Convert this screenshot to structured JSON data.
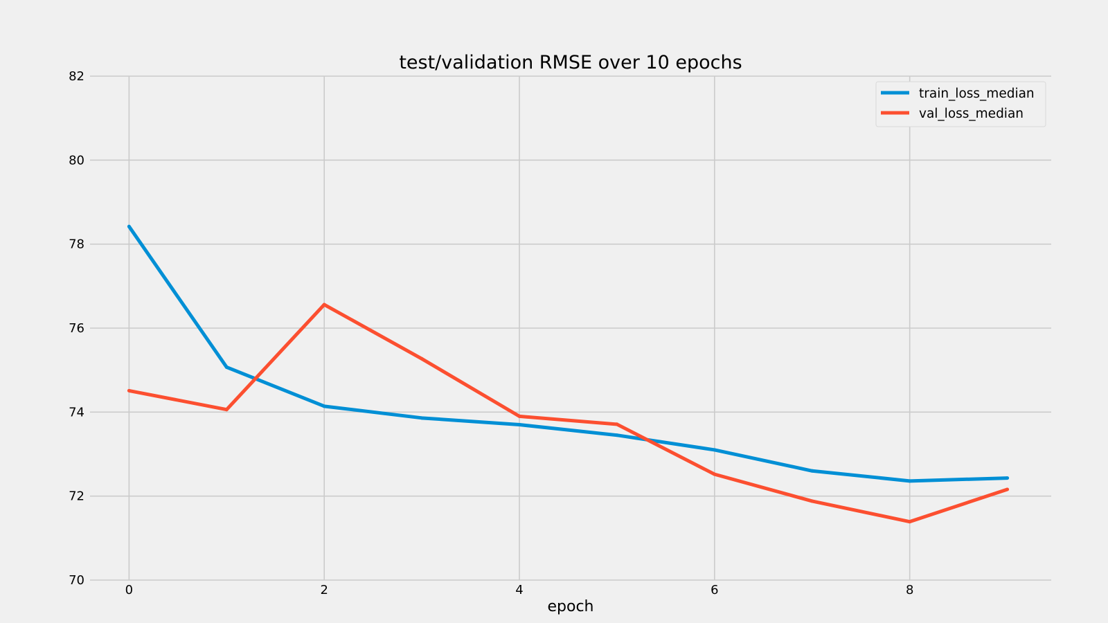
{
  "chart_data": {
    "type": "line",
    "title": "test/validation RMSE over 10 epochs",
    "xlabel": "epoch",
    "ylabel": "",
    "x": [
      0,
      1,
      2,
      3,
      4,
      5,
      6,
      7,
      8,
      9
    ],
    "xlim": [
      -0.4,
      9.45
    ],
    "ylim": [
      70,
      82
    ],
    "xticks": [
      0,
      2,
      4,
      6,
      8
    ],
    "yticks": [
      70,
      72,
      74,
      76,
      78,
      80,
      82
    ],
    "grid": true,
    "legend_position": "top-right",
    "series": [
      {
        "name": "train_loss_median",
        "color": "#008fd5",
        "values": [
          78.42,
          75.07,
          74.14,
          73.86,
          73.7,
          73.45,
          73.1,
          72.6,
          72.36,
          72.43
        ]
      },
      {
        "name": "val_loss_median",
        "color": "#fc4f30",
        "values": [
          74.51,
          74.06,
          76.56,
          75.27,
          73.9,
          73.71,
          72.52,
          71.88,
          71.39,
          72.16
        ]
      }
    ]
  }
}
